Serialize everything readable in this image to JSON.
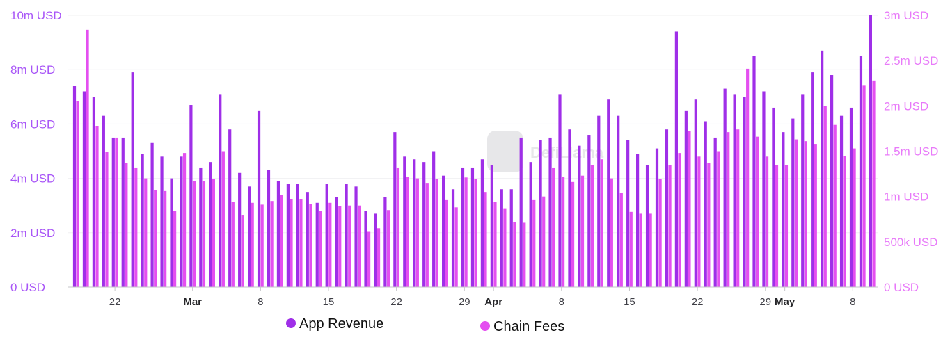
{
  "chart_data": {
    "type": "bar",
    "x_start": "2024-02-18",
    "series": [
      {
        "name": "App Revenue",
        "color": "#9f2fe8",
        "axis": "left",
        "values": [
          7.4,
          7.2,
          7.0,
          6.3,
          5.5,
          5.5,
          7.9,
          4.9,
          5.3,
          4.8,
          4.0,
          4.8,
          6.7,
          4.4,
          4.6,
          7.1,
          5.8,
          4.2,
          3.7,
          6.5,
          4.3,
          3.9,
          3.8,
          3.8,
          3.5,
          3.1,
          3.8,
          3.3,
          3.8,
          3.7,
          2.8,
          2.7,
          3.3,
          5.7,
          4.8,
          4.7,
          4.6,
          5.0,
          4.1,
          3.6,
          4.4,
          4.4,
          4.7,
          4.5,
          3.6,
          3.6,
          5.5,
          4.6,
          5.4,
          5.5,
          7.1,
          5.8,
          5.2,
          5.6,
          6.3,
          6.9,
          6.3,
          5.4,
          4.9,
          4.5,
          5.1,
          5.8,
          9.4,
          6.5,
          6.9,
          6.1,
          5.5,
          7.3,
          7.1,
          7.0,
          8.5,
          7.2,
          6.6,
          5.7,
          6.2,
          7.1,
          7.9,
          8.7,
          7.8,
          6.3,
          6.6,
          8.5,
          10.0
        ]
      },
      {
        "name": "Chain Fees",
        "color": "#e44ff0",
        "axis": "right",
        "values": [
          2.05,
          2.84,
          1.78,
          1.49,
          1.65,
          1.37,
          1.32,
          1.2,
          1.07,
          1.06,
          0.84,
          1.48,
          1.17,
          1.17,
          1.19,
          1.5,
          0.94,
          0.79,
          0.93,
          0.91,
          0.95,
          1.02,
          0.97,
          0.97,
          0.92,
          0.84,
          0.93,
          0.89,
          0.9,
          0.9,
          0.61,
          0.65,
          0.85,
          1.32,
          1.22,
          1.2,
          1.15,
          1.19,
          0.96,
          0.88,
          1.21,
          1.19,
          1.05,
          0.94,
          0.87,
          0.72,
          0.71,
          0.96,
          1.0,
          1.32,
          1.22,
          1.16,
          1.23,
          1.35,
          1.41,
          1.2,
          1.04,
          0.83,
          0.81,
          0.81,
          1.19,
          1.35,
          1.48,
          1.72,
          1.44,
          1.37,
          1.5,
          1.71,
          1.74,
          2.41,
          1.66,
          1.44,
          1.35,
          1.35,
          1.63,
          1.61,
          1.58,
          2.0,
          1.79,
          1.45,
          1.53,
          2.23,
          2.28
        ]
      }
    ],
    "left_axis": {
      "unit": "USD",
      "ylim": [
        0,
        10
      ],
      "ticks": [
        "0 USD",
        "2m USD",
        "4m USD",
        "6m USD",
        "8m USD",
        "10m USD"
      ]
    },
    "right_axis": {
      "unit": "USD",
      "ylim": [
        0,
        3
      ],
      "ticks": [
        "0 USD",
        "500k USD",
        "1m USD",
        "1.5m USD",
        "2m USD",
        "2.5m USD",
        "3m USD"
      ]
    },
    "x_ticks": [
      {
        "label": "22",
        "month": false
      },
      {
        "label": "Mar",
        "month": true
      },
      {
        "label": "8",
        "month": false
      },
      {
        "label": "15",
        "month": false
      },
      {
        "label": "22",
        "month": false
      },
      {
        "label": "29",
        "month": false
      },
      {
        "label": "Apr",
        "month": true
      },
      {
        "label": "8",
        "month": false
      },
      {
        "label": "15",
        "month": false
      },
      {
        "label": "22",
        "month": false
      },
      {
        "label": "29",
        "month": false
      },
      {
        "label": "May",
        "month": true
      },
      {
        "label": "8",
        "month": false
      }
    ],
    "legend": {
      "placement": "bottom",
      "items": [
        {
          "label": "App Revenue",
          "color": "#9f2fe8"
        },
        {
          "label": "Chain Fees",
          "color": "#e44ff0"
        }
      ]
    },
    "watermark": "DefiLlama",
    "grid": true
  }
}
